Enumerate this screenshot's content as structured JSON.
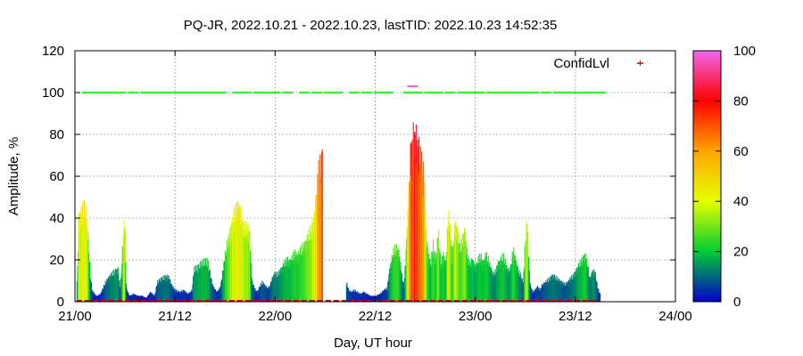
{
  "chart_data": {
    "type": "bar",
    "title": "PQ-JR, 2022.10.21 - 2022.10.23, lastTID: 2022.10.23 14:52:35",
    "xlabel": "Day, UT hour",
    "ylabel": "Amplitude, %",
    "xlim": [
      0,
      72
    ],
    "ylim": [
      0,
      120
    ],
    "x_ticks": [
      {
        "value": 0,
        "label": "21/00"
      },
      {
        "value": 12,
        "label": "21/12"
      },
      {
        "value": 24,
        "label": "22/00"
      },
      {
        "value": 36,
        "label": "22/12"
      },
      {
        "value": 48,
        "label": "23/00"
      },
      {
        "value": 60,
        "label": "23/12"
      },
      {
        "value": 72,
        "label": "24/00"
      }
    ],
    "y_ticks": [
      0,
      20,
      40,
      60,
      80,
      100,
      120
    ],
    "grid": true,
    "legend": {
      "label": "ConfidLvl",
      "position": "top-right",
      "marker_color": "#cc0000"
    },
    "colorbar": {
      "min": 0,
      "max": 100,
      "ticks": [
        0,
        20,
        40,
        60,
        80,
        100
      ],
      "stops": [
        {
          "v": 0,
          "color": "#0000cc"
        },
        {
          "v": 20,
          "color": "#00cc33"
        },
        {
          "v": 40,
          "color": "#e6ff00"
        },
        {
          "v": 60,
          "color": "#ffa500"
        },
        {
          "v": 80,
          "color": "#ff0000"
        },
        {
          "v": 100,
          "color": "#ee66ee"
        }
      ]
    },
    "amplitude_points": [
      [
        0.2,
        10
      ],
      [
        0.4,
        44
      ],
      [
        0.7,
        47
      ],
      [
        1.0,
        49
      ],
      [
        1.3,
        46
      ],
      [
        1.5,
        38
      ],
      [
        1.8,
        14
      ],
      [
        2.0,
        6
      ],
      [
        2.3,
        4
      ],
      [
        2.6,
        3
      ],
      [
        3.0,
        4
      ],
      [
        3.3,
        7
      ],
      [
        3.6,
        10
      ],
      [
        3.9,
        12
      ],
      [
        4.2,
        14
      ],
      [
        4.5,
        15
      ],
      [
        4.8,
        16
      ],
      [
        5.1,
        17
      ],
      [
        5.4,
        6
      ],
      [
        5.7,
        32
      ],
      [
        5.9,
        46
      ],
      [
        6.1,
        7
      ],
      [
        6.5,
        3
      ],
      [
        7.0,
        4
      ],
      [
        7.5,
        3
      ],
      [
        8.0,
        3
      ],
      [
        8.5,
        2
      ],
      [
        9.0,
        5
      ],
      [
        9.5,
        3
      ],
      [
        9.8,
        10
      ],
      [
        10.3,
        12
      ],
      [
        10.8,
        13
      ],
      [
        11.2,
        13
      ],
      [
        11.6,
        8
      ],
      [
        12.0,
        6
      ],
      [
        12.5,
        5
      ],
      [
        13.0,
        6
      ],
      [
        13.5,
        4
      ],
      [
        14.0,
        6
      ],
      [
        14.2,
        17
      ],
      [
        14.7,
        18
      ],
      [
        15.1,
        20
      ],
      [
        15.5,
        21
      ],
      [
        15.9,
        21
      ],
      [
        16.2,
        14
      ],
      [
        16.5,
        8
      ],
      [
        16.8,
        6
      ],
      [
        17.0,
        5
      ],
      [
        17.4,
        8
      ],
      [
        17.8,
        20
      ],
      [
        18.1,
        28
      ],
      [
        18.4,
        34
      ],
      [
        18.7,
        40
      ],
      [
        19.0,
        45
      ],
      [
        19.3,
        48
      ],
      [
        19.6,
        50
      ],
      [
        19.8,
        47
      ],
      [
        20.0,
        42
      ],
      [
        20.3,
        39
      ],
      [
        20.6,
        38
      ],
      [
        20.9,
        36
      ],
      [
        21.2,
        10
      ],
      [
        21.5,
        7
      ],
      [
        21.8,
        5
      ],
      [
        22.1,
        8
      ],
      [
        22.4,
        10
      ],
      [
        22.7,
        9
      ],
      [
        23.0,
        7
      ],
      [
        23.3,
        8
      ],
      [
        23.6,
        12
      ],
      [
        23.9,
        15
      ],
      [
        24.2,
        14
      ],
      [
        24.5,
        16
      ],
      [
        24.8,
        18
      ],
      [
        25.1,
        20
      ],
      [
        25.4,
        22
      ],
      [
        25.7,
        21
      ],
      [
        26.0,
        23
      ],
      [
        26.3,
        25
      ],
      [
        26.6,
        24
      ],
      [
        26.9,
        26
      ],
      [
        27.2,
        28
      ],
      [
        27.5,
        30
      ],
      [
        27.8,
        33
      ],
      [
        28.1,
        36
      ],
      [
        28.4,
        40
      ],
      [
        28.7,
        47
      ],
      [
        28.9,
        55
      ],
      [
        29.1,
        68
      ],
      [
        29.6,
        73
      ],
      [
        32.5,
        10
      ],
      [
        32.8,
        6
      ],
      [
        33.1,
        5
      ],
      [
        33.4,
        6
      ],
      [
        33.8,
        5
      ],
      [
        34.2,
        4
      ],
      [
        34.6,
        5
      ],
      [
        35.0,
        4
      ],
      [
        35.4,
        3
      ],
      [
        36.0,
        3
      ],
      [
        36.5,
        4
      ],
      [
        37.0,
        6
      ],
      [
        37.4,
        7
      ],
      [
        37.6,
        15
      ],
      [
        37.9,
        22
      ],
      [
        38.2,
        27
      ],
      [
        38.5,
        28
      ],
      [
        38.8,
        26
      ],
      [
        39.1,
        15
      ],
      [
        39.4,
        8
      ],
      [
        39.8,
        40
      ],
      [
        40.0,
        58
      ],
      [
        40.2,
        78
      ],
      [
        40.4,
        84
      ],
      [
        40.6,
        87
      ],
      [
        40.8,
        86
      ],
      [
        41.0,
        82
      ],
      [
        41.2,
        79
      ],
      [
        41.4,
        75
      ],
      [
        41.6,
        72
      ],
      [
        41.8,
        66
      ],
      [
        42.0,
        40
      ],
      [
        42.3,
        25
      ],
      [
        42.6,
        20
      ],
      [
        42.9,
        30
      ],
      [
        43.2,
        22
      ],
      [
        43.5,
        38
      ],
      [
        43.8,
        20
      ],
      [
        44.1,
        25
      ],
      [
        44.4,
        20
      ],
      [
        44.7,
        46
      ],
      [
        45.0,
        36
      ],
      [
        45.2,
        23
      ],
      [
        45.5,
        42
      ],
      [
        45.8,
        38
      ],
      [
        46.1,
        28
      ],
      [
        46.4,
        32
      ],
      [
        46.7,
        38
      ],
      [
        47.0,
        24
      ],
      [
        47.3,
        20
      ],
      [
        47.6,
        22
      ],
      [
        48.0,
        18
      ],
      [
        48.3,
        22
      ],
      [
        48.6,
        24
      ],
      [
        48.9,
        20
      ],
      [
        49.2,
        25
      ],
      [
        49.5,
        22
      ],
      [
        49.8,
        18
      ],
      [
        50.1,
        14
      ],
      [
        50.4,
        16
      ],
      [
        50.7,
        20
      ],
      [
        51.0,
        22
      ],
      [
        51.3,
        24
      ],
      [
        51.6,
        20
      ],
      [
        51.9,
        16
      ],
      [
        52.2,
        18
      ],
      [
        52.5,
        28
      ],
      [
        52.8,
        22
      ],
      [
        53.1,
        16
      ],
      [
        53.4,
        14
      ],
      [
        53.7,
        10
      ],
      [
        54.0,
        38
      ],
      [
        54.2,
        41
      ],
      [
        54.5,
        10
      ],
      [
        54.8,
        5
      ],
      [
        55.1,
        6
      ],
      [
        55.4,
        8
      ],
      [
        55.7,
        6
      ],
      [
        56.0,
        9
      ],
      [
        56.3,
        10
      ],
      [
        56.6,
        11
      ],
      [
        56.9,
        12
      ],
      [
        57.2,
        14
      ],
      [
        57.5,
        13
      ],
      [
        57.8,
        12
      ],
      [
        58.1,
        11
      ],
      [
        58.4,
        10
      ],
      [
        58.7,
        9
      ],
      [
        59.0,
        10
      ],
      [
        59.3,
        12
      ],
      [
        59.6,
        13
      ],
      [
        59.9,
        15
      ],
      [
        60.2,
        18
      ],
      [
        60.5,
        20
      ],
      [
        60.8,
        22
      ],
      [
        61.1,
        25
      ],
      [
        61.4,
        20
      ],
      [
        61.7,
        12
      ],
      [
        62.0,
        16
      ],
      [
        62.3,
        16
      ],
      [
        62.6,
        8
      ],
      [
        62.9,
        4
      ]
    ],
    "confidence_points": [
      [
        1.5,
        100
      ],
      [
        2.5,
        100
      ],
      [
        3.5,
        100
      ],
      [
        4.5,
        100
      ],
      [
        5.5,
        100
      ],
      [
        7.0,
        100
      ],
      [
        8.5,
        100
      ],
      [
        9.5,
        100
      ],
      [
        10.5,
        100
      ],
      [
        11.5,
        100
      ],
      [
        12.5,
        100
      ],
      [
        13.5,
        100
      ],
      [
        14.5,
        100
      ],
      [
        15.5,
        100
      ],
      [
        16.5,
        100
      ],
      [
        17.5,
        100
      ],
      [
        19.5,
        100
      ],
      [
        20.5,
        100
      ],
      [
        22.0,
        100
      ],
      [
        23.0,
        100
      ],
      [
        24.0,
        100
      ],
      [
        25.5,
        100
      ],
      [
        27.5,
        100
      ],
      [
        29.0,
        100
      ],
      [
        30.5,
        100
      ],
      [
        31.5,
        100
      ],
      [
        33.5,
        100
      ],
      [
        35.0,
        100
      ],
      [
        36.5,
        100
      ],
      [
        37.5,
        100
      ],
      [
        40.0,
        100
      ],
      [
        40.5,
        103
      ],
      [
        41.0,
        100
      ],
      [
        42.5,
        100
      ],
      [
        43.5,
        100
      ],
      [
        45.0,
        100
      ],
      [
        46.5,
        100
      ],
      [
        47.5,
        100
      ],
      [
        48.5,
        100
      ],
      [
        50.0,
        100
      ],
      [
        51.0,
        100
      ],
      [
        52.0,
        100
      ],
      [
        53.0,
        100
      ],
      [
        54.0,
        100
      ],
      [
        55.0,
        100
      ],
      [
        56.5,
        100
      ],
      [
        58.0,
        100
      ],
      [
        59.0,
        100
      ],
      [
        60.0,
        100
      ],
      [
        61.0,
        100
      ],
      [
        62.0,
        100
      ],
      [
        63.0,
        100
      ]
    ]
  }
}
